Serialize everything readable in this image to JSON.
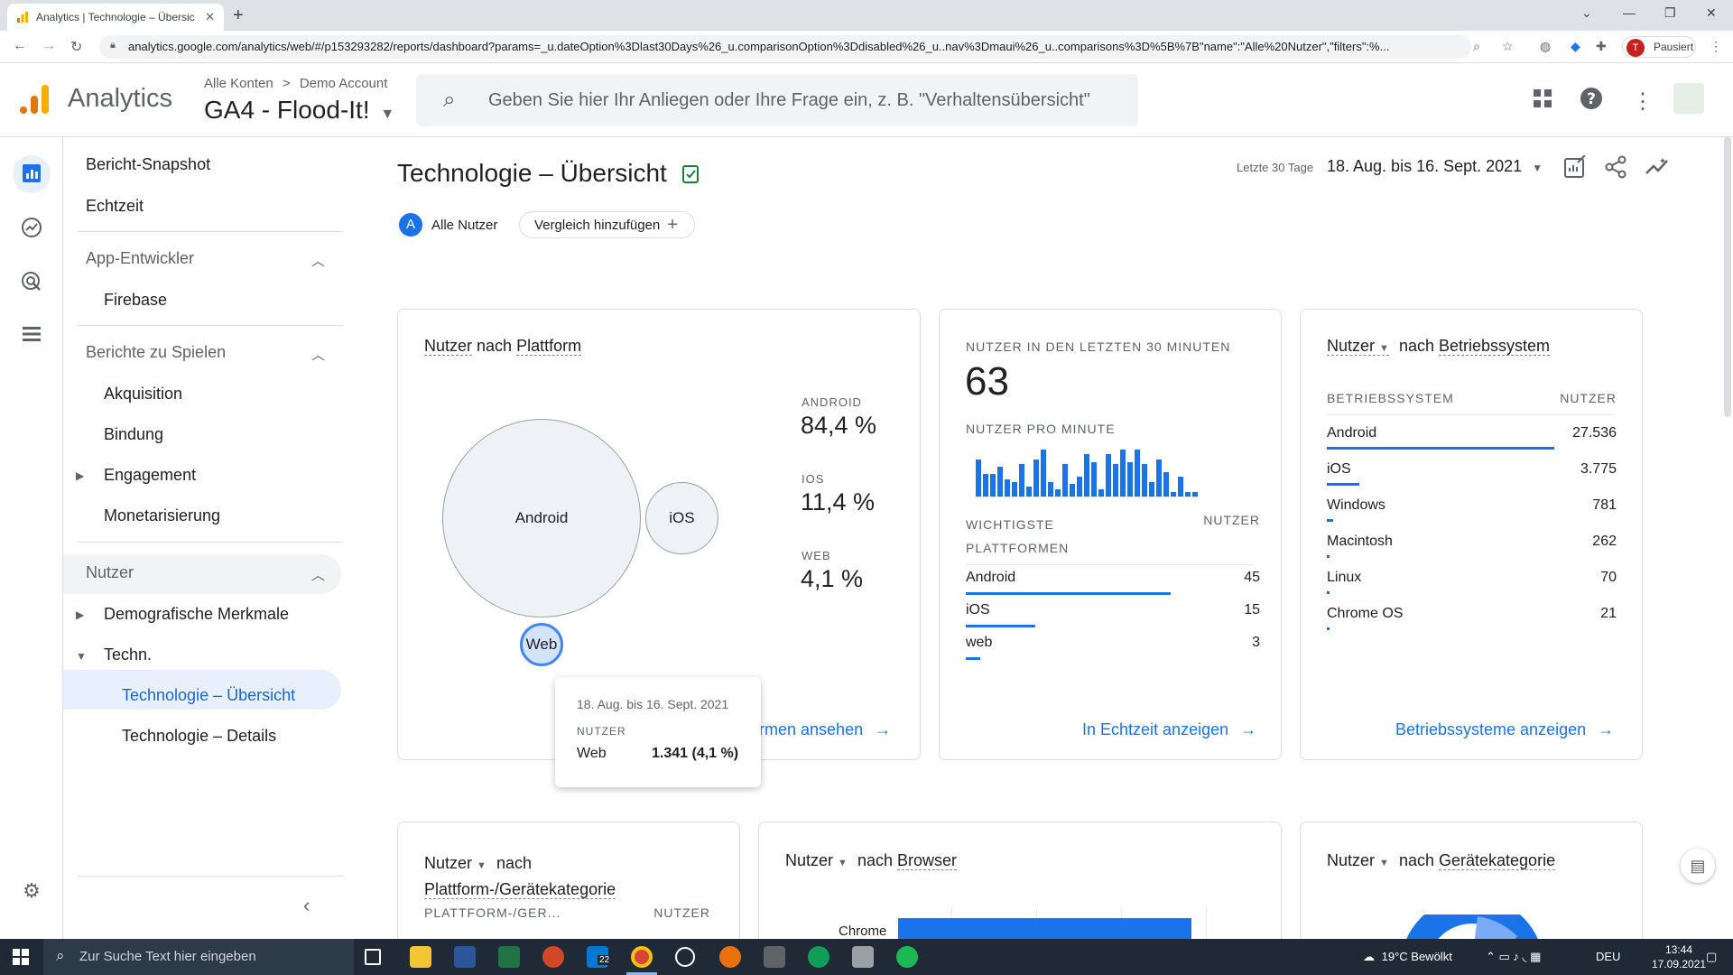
{
  "browser": {
    "tab_title": "Analytics | Technologie – Übersic",
    "url": "analytics.google.com/analytics/web/#/p153293282/reports/dashboard?params=_u.dateOption%3Dlast30Days%26_u.comparisonOption%3Ddisabled%26_u..nav%3Dmaui%26_u..comparisons%3D%5B%7B\"name\":\"Alle%20Nutzer\",\"filters\":%...",
    "profile_initial": "T",
    "profile_status": "Pausiert"
  },
  "header": {
    "app_name": "Analytics",
    "crumb_all": "Alle Konten",
    "crumb_sep": ">",
    "crumb_account": "Demo Account",
    "property": "GA4 - Flood-It!",
    "search_placeholder": "Geben Sie hier Ihr Anliegen oder Ihre Frage ein, z. B. \"Verhaltensübersicht\""
  },
  "nav": {
    "snapshot": "Bericht-Snapshot",
    "realtime": "Echtzeit",
    "sec_app_dev": "App-Entwickler",
    "firebase": "Firebase",
    "sec_games": "Berichte zu Spielen",
    "acquisition": "Akquisition",
    "retention": "Bindung",
    "engagement": "Engagement",
    "monetization": "Monetarisierung",
    "sec_users": "Nutzer",
    "demographics": "Demografische Merkmale",
    "tech": "Techn.",
    "tech_overview": "Technologie – Übersicht",
    "tech_details": "Technologie – Details"
  },
  "page": {
    "title": "Technologie – Übersicht",
    "segment_letter": "A",
    "segment": "Alle Nutzer",
    "add_comparison": "Vergleich hinzufügen",
    "date_label": "Letzte 30 Tage",
    "date_range": "18. Aug. bis 16. Sept. 2021"
  },
  "platform_card": {
    "title_prefix": "Nutzer",
    "title_mid": "nach",
    "title_dim": "Plattform",
    "bubbles": [
      {
        "label": "Android",
        "share": 84.4
      },
      {
        "label": "iOS",
        "share": 11.4
      },
      {
        "label": "Web",
        "share": 4.1
      }
    ],
    "stats": [
      {
        "label": "ANDROID",
        "value": "84,4 %"
      },
      {
        "label": "IOS",
        "value": "11,4 %"
      },
      {
        "label": "WEB",
        "value": "4,1 %"
      }
    ],
    "link": "Plattformen ansehen",
    "link_visible": "ormen ansehen"
  },
  "tooltip": {
    "date": "18. Aug. bis 16. Sept. 2021",
    "metric": "NUTZER",
    "row_label": "Web",
    "row_value": "1.341 (4,1 %)"
  },
  "realtime_card": {
    "title": "NUTZER IN DEN LETZTEN 30 MINUTEN",
    "value": "63",
    "per_minute": "NUTZER PRO MINUTE",
    "per_minute_values": [
      3,
      1.8,
      1.8,
      2.4,
      1.4,
      1.2,
      2.6,
      0.8,
      3,
      3.8,
      1.2,
      0.6,
      2.6,
      1,
      1.6,
      3.4,
      2.8,
      0.6,
      3.4,
      2.6,
      3.8,
      2.8,
      3.8,
      2.6,
      1.2,
      3,
      2,
      0.4,
      1.6,
      0.4,
      0.4
    ],
    "col_platforms": "WICHTIGSTE PLATTFORMEN",
    "col_platforms_l1": "WICHTIGSTE",
    "col_platforms_l2": "PLATTFORMEN",
    "col_users": "NUTZER",
    "rows": [
      {
        "label": "Android",
        "value": "45",
        "share": 0.71
      },
      {
        "label": "iOS",
        "value": "15",
        "share": 0.24
      },
      {
        "label": "web",
        "value": "3",
        "share": 0.05
      }
    ],
    "link": "In Echtzeit anzeigen"
  },
  "os_card": {
    "title_prefix": "Nutzer",
    "title_mid": "nach",
    "title_dim": "Betriebssystem",
    "col_os": "BETRIEBSSYSTEM",
    "col_users": "NUTZER",
    "rows": [
      {
        "label": "Android",
        "value": "27.536",
        "share": 0.84
      },
      {
        "label": "iOS",
        "value": "3.775",
        "share": 0.12
      },
      {
        "label": "Windows",
        "value": "781",
        "share": 0.024
      },
      {
        "label": "Macintosh",
        "value": "262",
        "share": 0.008
      },
      {
        "label": "Linux",
        "value": "70",
        "share": 0.002
      },
      {
        "label": "Chrome OS",
        "value": "21",
        "share": 0.001
      }
    ],
    "link": "Betriebssysteme anzeigen"
  },
  "bottom_cards": {
    "device_prefix": "Nutzer",
    "device_mid": "nach",
    "device_dim": "Plattform-/Gerätekategorie",
    "device_col1": "PLATTFORM-/GER...",
    "device_col2": "NUTZER",
    "browser_prefix": "Nutzer",
    "browser_mid": "nach",
    "browser_dim": "Browser",
    "browser_first": "Chrome",
    "category_prefix": "Nutzer",
    "category_mid": "nach",
    "category_dim": "Gerätekategorie"
  },
  "taskbar": {
    "search": "Zur Suche Text hier eingeben",
    "mail_badge": "22",
    "weather": "19°C  Bewölkt",
    "lang": "DEU",
    "time": "13:44",
    "date": "17.09.2021"
  },
  "colors": {
    "accent": "#1a73e8",
    "bar": "#1a73e8",
    "brand_orange": "#f9ab00",
    "brand_dark_orange": "#e37400"
  }
}
